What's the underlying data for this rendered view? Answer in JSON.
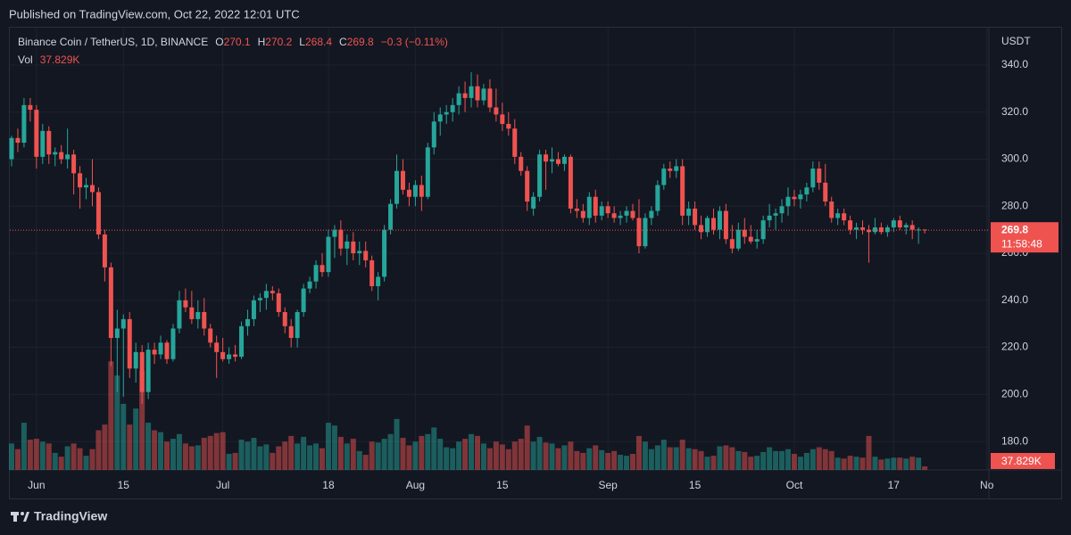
{
  "chart_data": {
    "type": "candlestick",
    "published": "Published on TradingView.com, Oct 22, 2022 12:01 UTC",
    "title": "Binance Coin / TetherUS, 1D, BINANCE",
    "ohlc_labels": [
      "O",
      "H",
      "L",
      "C"
    ],
    "change": "−0.3 (−0.11%)",
    "volume_title": "Vol",
    "volume_label": "37.829K",
    "countdown": "11:58:48",
    "y_axis_label": "USDT",
    "brand": "TradingView",
    "up_color": "#26a69a",
    "down_color": "#ef5350",
    "grid": true,
    "ylim": [
      167.9,
      356.3
    ],
    "yticks": [
      {
        "value": 180,
        "label": "180.0"
      },
      {
        "value": 200,
        "label": "200.0"
      },
      {
        "value": 220,
        "label": "220.0"
      },
      {
        "value": 240,
        "label": "240.0"
      },
      {
        "value": 260,
        "label": "260.0"
      },
      {
        "value": 280,
        "label": "280.0"
      },
      {
        "value": 300,
        "label": "300.0"
      },
      {
        "value": 320,
        "label": "320.0"
      },
      {
        "value": 340,
        "label": "340.0"
      }
    ],
    "xticks": [
      {
        "value": 4,
        "label": "Jun"
      },
      {
        "value": 18,
        "label": "15"
      },
      {
        "value": 34,
        "label": "Jul"
      },
      {
        "value": 51,
        "label": "18"
      },
      {
        "value": 65,
        "label": "Aug"
      },
      {
        "value": 79,
        "label": "15"
      },
      {
        "value": 96,
        "label": "Sep"
      },
      {
        "value": 110,
        "label": "15"
      },
      {
        "value": 126,
        "label": "Oct"
      },
      {
        "value": 142,
        "label": "17"
      },
      {
        "value": 157,
        "label": "No"
      }
    ],
    "volume_ylim": [
      0,
      1200
    ],
    "open": [
      300,
      309,
      307,
      323,
      321,
      301,
      312,
      302,
      303,
      300,
      302,
      294,
      288,
      289,
      286,
      268,
      254,
      224,
      228,
      232,
      211,
      218,
      201,
      219,
      217,
      222,
      215,
      228,
      240,
      237,
      232,
      235,
      228,
      222,
      218,
      215,
      217,
      216,
      229,
      232,
      240,
      241,
      244,
      243,
      235,
      229,
      224,
      235,
      245,
      248,
      255,
      252,
      267,
      270,
      262,
      265,
      260,
      261,
      257,
      246,
      250,
      270,
      281,
      295,
      287,
      284,
      289,
      284,
      305,
      316,
      319,
      320,
      323,
      328,
      326,
      331,
      325,
      330,
      322,
      319,
      315,
      313,
      301,
      295,
      279,
      284,
      302,
      299,
      300,
      298,
      301,
      279,
      278,
      275,
      284,
      276,
      280,
      277,
      275,
      276,
      278,
      275,
      263,
      275,
      278,
      289,
      296,
      295,
      297,
      276,
      279,
      272,
      269,
      275,
      270,
      278,
      266,
      262,
      270,
      267,
      265,
      266,
      274,
      276,
      277,
      280,
      284,
      283,
      285,
      288,
      296,
      290,
      282,
      275,
      277,
      274,
      270,
      271,
      270,
      269,
      271,
      269,
      271,
      274,
      271,
      272,
      270,
      270.1
    ],
    "high": [
      310,
      313,
      326,
      326,
      323,
      315,
      314,
      305,
      306,
      313,
      304,
      297,
      292,
      300,
      288,
      270,
      256,
      236,
      234,
      235,
      222,
      221,
      222,
      222,
      225,
      223,
      230,
      244,
      245,
      244,
      240,
      241,
      230,
      225,
      224,
      220,
      221,
      231,
      236,
      242,
      243,
      247,
      246,
      245,
      237,
      232,
      236,
      247,
      250,
      257,
      260,
      270,
      272,
      274,
      268,
      269,
      265,
      265,
      259,
      252,
      272,
      283,
      302,
      300,
      290,
      291,
      293,
      307,
      320,
      322,
      323,
      326,
      331,
      333,
      337,
      336,
      332,
      334,
      330,
      324,
      320,
      317,
      303,
      297,
      286,
      304,
      304,
      305,
      303,
      302,
      302,
      283,
      281,
      286,
      287,
      282,
      282,
      280,
      278,
      280,
      281,
      283,
      277,
      280,
      291,
      298,
      299,
      300,
      300,
      282,
      282,
      276,
      276,
      279,
      280,
      281,
      272,
      273,
      275,
      272,
      270,
      276,
      281,
      279,
      283,
      288,
      287,
      287,
      290,
      299,
      299,
      298,
      284,
      279,
      279,
      276,
      273,
      274,
      272,
      275,
      273,
      272,
      275,
      276,
      273,
      274,
      271,
      270.2
    ],
    "low": [
      297,
      303,
      305,
      316,
      296,
      298,
      298,
      297,
      298,
      296,
      285,
      279,
      283,
      280,
      266,
      248,
      212,
      201,
      199,
      207,
      205,
      196,
      198,
      213,
      215,
      213,
      214,
      226,
      235,
      230,
      228,
      225,
      220,
      207,
      214,
      213,
      214,
      215,
      225,
      229,
      235,
      236,
      240,
      233,
      226,
      220,
      220,
      233,
      243,
      245,
      250,
      250,
      258,
      259,
      255,
      257,
      255,
      254,
      244,
      240,
      248,
      268,
      279,
      285,
      280,
      280,
      278,
      283,
      302,
      310,
      315,
      316,
      319,
      320,
      322,
      322,
      323,
      320,
      316,
      312,
      310,
      298,
      293,
      278,
      276,
      282,
      287,
      294,
      297,
      295,
      277,
      275,
      273,
      272,
      273,
      274,
      275,
      273,
      272,
      273,
      274,
      260,
      262,
      272,
      276,
      287,
      292,
      292,
      272,
      272,
      270,
      266,
      267,
      268,
      266,
      264,
      260,
      261,
      264,
      264,
      262,
      264,
      271,
      270,
      273,
      276,
      280,
      279,
      282,
      286,
      287,
      280,
      273,
      272,
      272,
      268,
      266,
      268,
      256,
      268,
      268,
      267,
      269,
      270,
      268,
      266,
      264,
      268.4
    ],
    "close": [
      309,
      307,
      323,
      321,
      301,
      312,
      302,
      303,
      300,
      302,
      294,
      288,
      289,
      286,
      268,
      254,
      224,
      228,
      232,
      211,
      218,
      201,
      219,
      217,
      222,
      215,
      228,
      240,
      237,
      232,
      235,
      228,
      222,
      218,
      215,
      217,
      216,
      229,
      232,
      240,
      241,
      244,
      243,
      235,
      229,
      224,
      235,
      245,
      248,
      255,
      252,
      267,
      270,
      262,
      265,
      260,
      261,
      257,
      246,
      250,
      270,
      281,
      295,
      287,
      284,
      289,
      284,
      305,
      316,
      319,
      320,
      323,
      328,
      326,
      331,
      325,
      330,
      322,
      319,
      315,
      313,
      301,
      295,
      282,
      284,
      302,
      299,
      300,
      298,
      301,
      279,
      278,
      275,
      284,
      276,
      280,
      277,
      275,
      276,
      278,
      275,
      263,
      275,
      278,
      289,
      296,
      295,
      297,
      276,
      279,
      272,
      269,
      275,
      270,
      278,
      266,
      262,
      270,
      267,
      265,
      266,
      274,
      276,
      277,
      280,
      284,
      283,
      285,
      288,
      296,
      290,
      282,
      275,
      277,
      274,
      270,
      271,
      270,
      269,
      271,
      269,
      271,
      274,
      271,
      272,
      270,
      270.1,
      269.8
    ],
    "volume": [
      280,
      220,
      500,
      320,
      330,
      300,
      280,
      180,
      140,
      250,
      280,
      230,
      150,
      220,
      420,
      480,
      1150,
      1000,
      700,
      480,
      650,
      1050,
      500,
      420,
      400,
      300,
      330,
      380,
      280,
      250,
      260,
      340,
      360,
      390,
      400,
      170,
      180,
      320,
      300,
      340,
      250,
      270,
      180,
      250,
      300,
      360,
      280,
      350,
      260,
      280,
      230,
      500,
      470,
      350,
      280,
      330,
      200,
      160,
      300,
      290,
      330,
      380,
      540,
      340,
      260,
      300,
      360,
      380,
      450,
      330,
      240,
      230,
      300,
      330,
      380,
      360,
      280,
      230,
      300,
      270,
      220,
      300,
      330,
      470,
      300,
      350,
      290,
      280,
      230,
      260,
      300,
      200,
      180,
      230,
      260,
      210,
      180,
      200,
      160,
      150,
      170,
      360,
      300,
      220,
      260,
      320,
      240,
      240,
      320,
      230,
      220,
      200,
      140,
      150,
      250,
      260,
      240,
      200,
      190,
      140,
      150,
      190,
      240,
      200,
      200,
      220,
      170,
      140,
      180,
      220,
      240,
      220,
      200,
      130,
      120,
      150,
      140,
      130,
      360,
      140,
      110,
      120,
      130,
      130,
      120,
      140,
      130,
      37.829
    ]
  }
}
